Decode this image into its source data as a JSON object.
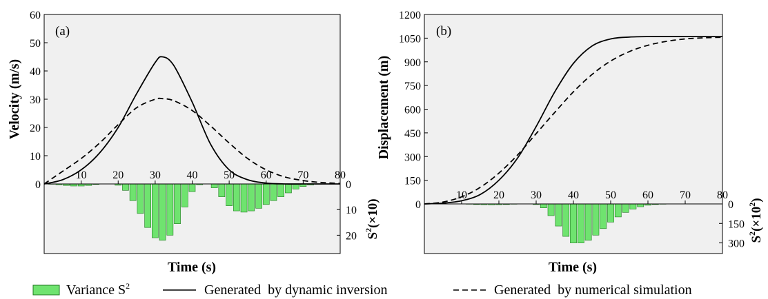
{
  "chart_data": [
    {
      "panel_label": "(a)",
      "type": "line",
      "xlabel": "Time (s)",
      "ylabel": "Velocity (m/s)",
      "y2label_base": "S",
      "y2label_sup": "2",
      "y2label_unit": "(×10)",
      "xlim": [
        0,
        80
      ],
      "ylim": [
        0,
        60
      ],
      "y2lim": [
        0,
        25
      ],
      "x_ticks": [
        10,
        20,
        30,
        40,
        50,
        60,
        70,
        80
      ],
      "y_ticks": [
        0,
        10,
        20,
        30,
        40,
        50,
        60
      ],
      "y2_ticks": [
        0,
        10,
        20
      ],
      "series": [
        {
          "name": "Generated  by dynamic inversion",
          "style": "solid",
          "x": [
            0,
            5,
            10,
            15,
            20,
            25,
            30,
            32,
            35,
            40,
            45,
            50,
            55,
            60,
            65,
            70,
            75,
            80
          ],
          "y": [
            0,
            1.5,
            5,
            11,
            20,
            32,
            43,
            45,
            42,
            29,
            14,
            5,
            1.5,
            0.3,
            0,
            0,
            0,
            0
          ]
        },
        {
          "name": "Generated  by numerical simulation",
          "style": "dashed",
          "x": [
            0,
            5,
            10,
            15,
            20,
            25,
            30,
            32,
            35,
            40,
            45,
            50,
            55,
            60,
            65,
            70,
            75,
            80
          ],
          "y": [
            0,
            4.5,
            9,
            14.5,
            21,
            27,
            30,
            30.2,
            29.5,
            26,
            20.5,
            14.5,
            9,
            5,
            2.5,
            1.2,
            0.5,
            0.2
          ]
        },
        {
          "name": "Variance S²",
          "style": "bars",
          "x": [
            2,
            4,
            6,
            8,
            10,
            12,
            14,
            16,
            18,
            20,
            22,
            24,
            26,
            28,
            30,
            32,
            34,
            36,
            38,
            40,
            42,
            44,
            46,
            48,
            50,
            52,
            54,
            56,
            58,
            60,
            62,
            64,
            66,
            68,
            70,
            72,
            74
          ],
          "y": [
            0.1,
            0.3,
            0.6,
            0.8,
            0.8,
            0.6,
            0.2,
            0,
            0,
            0.5,
            2.5,
            6.5,
            11.5,
            17,
            21,
            22,
            20,
            15.5,
            9,
            3,
            0.3,
            0,
            1.5,
            5,
            8.5,
            10.5,
            11,
            10.5,
            9.5,
            8,
            6.5,
            5,
            3.5,
            2,
            1,
            0.4,
            0.1
          ]
        }
      ]
    },
    {
      "panel_label": "(b)",
      "type": "line",
      "xlabel": "Time (s)",
      "ylabel": "Displacement (m)",
      "y2label_base": "S",
      "y2label_sup": "2",
      "y2label_unit": "(×10",
      "y2label_unit_sup": "2",
      "y2label_unit_end": ")",
      "xlim": [
        0,
        80
      ],
      "ylim": [
        0,
        1200
      ],
      "y2lim": [
        0,
        350
      ],
      "x_ticks": [
        10,
        20,
        30,
        40,
        50,
        60,
        70,
        80
      ],
      "y_ticks": [
        0,
        150,
        300,
        450,
        600,
        750,
        900,
        1050,
        1200
      ],
      "y2_ticks": [
        0,
        150,
        300
      ],
      "series": [
        {
          "name": "Generated  by dynamic inversion",
          "style": "solid",
          "x": [
            0,
            5,
            10,
            15,
            20,
            25,
            30,
            35,
            40,
            45,
            50,
            55,
            60,
            70,
            80
          ],
          "y": [
            0,
            5,
            20,
            60,
            150,
            290,
            490,
            710,
            890,
            1000,
            1045,
            1057,
            1060,
            1060,
            1060
          ]
        },
        {
          "name": "Generated  by numerical simulation",
          "style": "dashed",
          "x": [
            0,
            5,
            10,
            15,
            20,
            25,
            30,
            35,
            40,
            45,
            50,
            55,
            60,
            65,
            70,
            75,
            80
          ],
          "y": [
            0,
            12,
            45,
            105,
            195,
            310,
            445,
            580,
            710,
            820,
            905,
            965,
            1005,
            1030,
            1045,
            1052,
            1055
          ]
        },
        {
          "name": "Variance S²",
          "style": "bars",
          "x": [
            12,
            14,
            16,
            18,
            20,
            22,
            24,
            30,
            32,
            34,
            36,
            38,
            40,
            42,
            44,
            46,
            48,
            50,
            52,
            54,
            56,
            58,
            60,
            62,
            64,
            66
          ],
          "y": [
            2,
            4,
            6,
            7,
            6,
            4,
            2,
            5,
            30,
            90,
            170,
            250,
            300,
            300,
            280,
            240,
            190,
            140,
            100,
            65,
            40,
            22,
            10,
            4,
            2,
            1
          ]
        }
      ]
    }
  ],
  "legend": [
    {
      "symbol": "bar",
      "label": "Variance S",
      "sup": "2"
    },
    {
      "symbol": "solid",
      "label": "Generated  by dynamic inversion"
    },
    {
      "symbol": "dashed",
      "label": "Generated  by numerical simulation"
    }
  ],
  "colors": {
    "bar_fill": "#6fe36f",
    "bar_stroke": "#1f7a1f",
    "plot_bg": "#f0f0f0",
    "line": "#000000"
  }
}
